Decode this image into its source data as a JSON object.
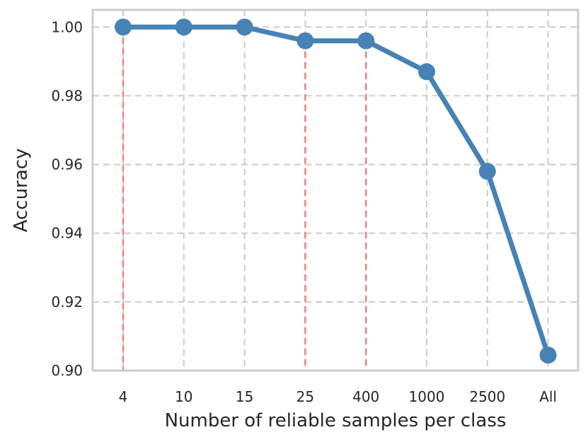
{
  "chart_data": {
    "type": "line",
    "title": "",
    "xlabel": "Number of reliable samples per class",
    "ylabel": "Accuracy",
    "categories": [
      "4",
      "10",
      "15",
      "25",
      "400",
      "1000",
      "2500",
      "All"
    ],
    "series": [
      {
        "values": [
          1.0,
          1.0,
          1.0,
          0.996,
          0.996,
          0.987,
          0.958,
          0.9045
        ]
      }
    ],
    "ylim": [
      0.9,
      1.005
    ],
    "yticks": [
      0.9,
      0.92,
      0.94,
      0.96,
      0.98,
      1.0
    ],
    "ytick_labels": [
      "0.90",
      "0.92",
      "0.94",
      "0.96",
      "0.98",
      "1.00"
    ],
    "highlighted_categories": [
      "4",
      "25",
      "400"
    ],
    "grid": true,
    "grid_style": "dashed",
    "colors": {
      "line": "#4682B4",
      "highlight": "#F08080",
      "grid": "#CCCCCC",
      "frame": "#CCCCCC"
    }
  }
}
